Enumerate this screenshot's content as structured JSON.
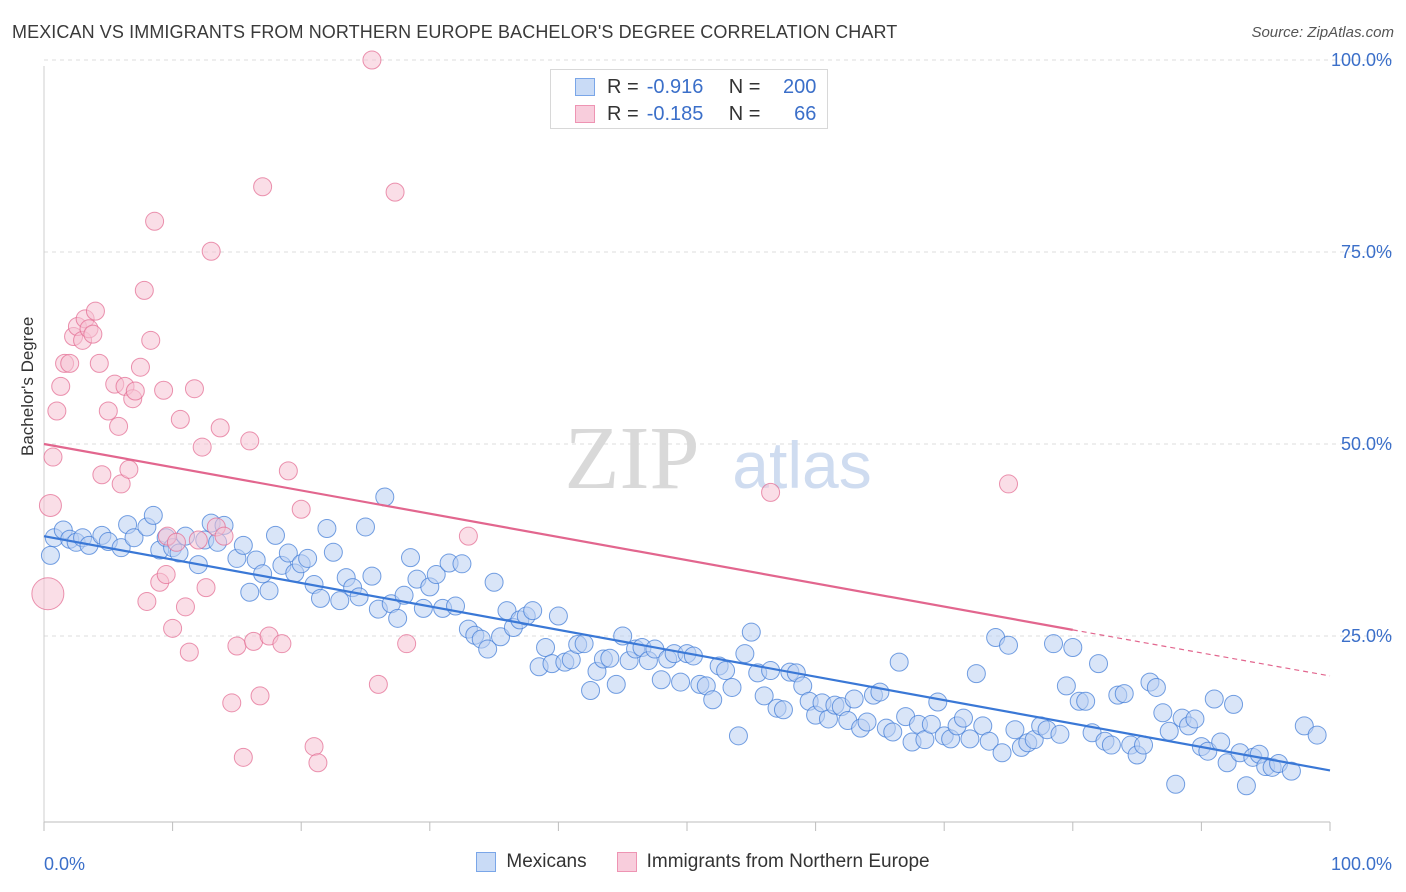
{
  "title": "MEXICAN VS IMMIGRANTS FROM NORTHERN EUROPE BACHELOR'S DEGREE CORRELATION CHART",
  "source": "Source: ZipAtlas.com",
  "watermark": {
    "zip": "ZIP",
    "atlas": "atlas"
  },
  "legend": {
    "rows": [
      {
        "r_label": "R =",
        "r_value": "-0.916",
        "n_label": "N =",
        "n_value": "200",
        "color": "#7aa6e8",
        "fill": "#c9dbf6"
      },
      {
        "r_label": "R =",
        "r_value": "-0.185",
        "n_label": "N =",
        "n_value": "66",
        "color": "#ee94b3",
        "fill": "#f8cddc"
      }
    ]
  },
  "chart_data": {
    "type": "scatter",
    "title": "MEXICAN VS IMMIGRANTS FROM NORTHERN EUROPE BACHELOR'S DEGREE CORRELATION CHART",
    "xlabel": "",
    "ylabel": "Bachelor's Degree",
    "xlim": [
      0,
      100
    ],
    "ylim": [
      0,
      100
    ],
    "x_tick_labels": [
      "0.0%",
      "100.0%"
    ],
    "y_tick_labels": [
      "25.0%",
      "50.0%",
      "75.0%",
      "100.0%"
    ],
    "y_ticks": [
      25,
      50,
      75,
      100
    ],
    "series": [
      {
        "name": "Mexicans",
        "color": "#3a78d6",
        "fill": "#b9d0f2",
        "trend": {
          "x0": 0,
          "y0": 38.0,
          "x1": 100,
          "y1": 7.5
        },
        "points": [
          [
            0.5,
            35.5
          ],
          [
            0.8,
            37.8
          ],
          [
            1.5,
            38.8
          ],
          [
            2,
            37.6
          ],
          [
            2.5,
            37.2
          ],
          [
            3,
            37.8
          ],
          [
            3.5,
            36.8
          ],
          [
            4.5,
            38.1
          ],
          [
            5,
            37.3
          ],
          [
            6,
            36.5
          ],
          [
            6.5,
            39.5
          ],
          [
            7,
            37.8
          ],
          [
            8,
            39.2
          ],
          [
            8.5,
            40.7
          ],
          [
            9,
            36.2
          ],
          [
            9.5,
            37.8
          ],
          [
            10,
            36.5
          ],
          [
            10.5,
            35.8
          ],
          [
            11,
            38.0
          ],
          [
            12,
            34.3
          ],
          [
            12.5,
            37.5
          ],
          [
            13,
            39.7
          ],
          [
            13.5,
            37.2
          ],
          [
            14,
            39.4
          ],
          [
            15,
            35.1
          ],
          [
            15.5,
            36.8
          ],
          [
            16,
            30.7
          ],
          [
            16.5,
            34.9
          ],
          [
            17,
            33.1
          ],
          [
            17.5,
            30.9
          ],
          [
            18,
            38.1
          ],
          [
            18.5,
            34.2
          ],
          [
            19,
            35.8
          ],
          [
            19.5,
            33.2
          ],
          [
            20,
            34.4
          ],
          [
            20.5,
            35.1
          ],
          [
            21,
            31.7
          ],
          [
            21.5,
            29.9
          ],
          [
            22,
            39.0
          ],
          [
            22.5,
            35.9
          ],
          [
            23,
            29.6
          ],
          [
            23.5,
            32.6
          ],
          [
            24,
            31.3
          ],
          [
            24.5,
            30.1
          ],
          [
            25,
            39.2
          ],
          [
            25.5,
            32.8
          ],
          [
            26,
            28.5
          ],
          [
            26.5,
            43.1
          ],
          [
            27,
            29.2
          ],
          [
            27.5,
            27.3
          ],
          [
            28,
            30.3
          ],
          [
            28.5,
            35.2
          ],
          [
            29,
            32.4
          ],
          [
            29.5,
            28.6
          ],
          [
            30,
            31.4
          ],
          [
            30.5,
            33.0
          ],
          [
            31,
            28.6
          ],
          [
            31.5,
            34.5
          ],
          [
            32,
            28.9
          ],
          [
            32.5,
            34.4
          ],
          [
            33,
            25.9
          ],
          [
            33.5,
            25.1
          ],
          [
            34,
            24.6
          ],
          [
            34.5,
            23.3
          ],
          [
            35,
            32.0
          ],
          [
            35.5,
            24.9
          ],
          [
            36,
            28.3
          ],
          [
            36.5,
            26.1
          ],
          [
            37,
            27.1
          ],
          [
            37.5,
            27.6
          ],
          [
            38,
            28.3
          ],
          [
            38.5,
            21.0
          ],
          [
            39,
            23.5
          ],
          [
            39.5,
            21.4
          ],
          [
            40,
            27.6
          ],
          [
            40.5,
            21.6
          ],
          [
            41,
            21.9
          ],
          [
            41.5,
            23.9
          ],
          [
            42,
            24.0
          ],
          [
            42.5,
            17.9
          ],
          [
            43,
            20.4
          ],
          [
            43.5,
            22.0
          ],
          [
            44,
            22.1
          ],
          [
            44.5,
            18.7
          ],
          [
            45,
            25.0
          ],
          [
            45.5,
            21.8
          ],
          [
            46,
            23.3
          ],
          [
            46.5,
            23.5
          ],
          [
            47,
            21.8
          ],
          [
            47.5,
            23.3
          ],
          [
            48,
            19.3
          ],
          [
            48.5,
            22.0
          ],
          [
            49,
            22.7
          ],
          [
            49.5,
            19.0
          ],
          [
            50,
            22.7
          ],
          [
            50.5,
            22.4
          ],
          [
            51,
            18.7
          ],
          [
            51.5,
            18.5
          ],
          [
            52,
            16.7
          ],
          [
            52.5,
            21.1
          ],
          [
            53,
            20.5
          ],
          [
            53.5,
            18.3
          ],
          [
            54,
            12.0
          ],
          [
            54.5,
            22.7
          ],
          [
            55,
            25.5
          ],
          [
            55.5,
            20.2
          ],
          [
            56,
            17.2
          ],
          [
            56.5,
            20.5
          ],
          [
            57,
            15.6
          ],
          [
            57.5,
            15.4
          ],
          [
            58,
            20.3
          ],
          [
            58.5,
            20.2
          ],
          [
            59,
            18.5
          ],
          [
            59.5,
            16.5
          ],
          [
            60,
            14.7
          ],
          [
            60.5,
            16.3
          ],
          [
            61,
            14.2
          ],
          [
            61.5,
            16.0
          ],
          [
            62,
            15.8
          ],
          [
            62.5,
            14.0
          ],
          [
            63,
            16.8
          ],
          [
            63.5,
            13.0
          ],
          [
            64,
            13.8
          ],
          [
            64.5,
            17.3
          ],
          [
            65,
            17.7
          ],
          [
            65.5,
            13.0
          ],
          [
            66,
            12.5
          ],
          [
            66.5,
            21.6
          ],
          [
            67,
            14.5
          ],
          [
            67.5,
            11.2
          ],
          [
            68,
            13.5
          ],
          [
            68.5,
            11.5
          ],
          [
            69,
            13.5
          ],
          [
            69.5,
            16.4
          ],
          [
            70,
            12.0
          ],
          [
            70.5,
            11.6
          ],
          [
            71,
            13.3
          ],
          [
            71.5,
            14.3
          ],
          [
            72,
            11.6
          ],
          [
            72.5,
            20.1
          ],
          [
            73,
            13.3
          ],
          [
            73.5,
            11.3
          ],
          [
            74,
            24.8
          ],
          [
            74.5,
            9.8
          ],
          [
            75,
            23.8
          ],
          [
            75.5,
            12.8
          ],
          [
            76,
            10.5
          ],
          [
            76.5,
            11.1
          ],
          [
            77,
            11.5
          ],
          [
            77.5,
            13.3
          ],
          [
            78,
            12.8
          ],
          [
            78.5,
            24.0
          ],
          [
            79,
            12.2
          ],
          [
            79.5,
            18.5
          ],
          [
            80,
            23.5
          ],
          [
            80.5,
            16.5
          ],
          [
            81,
            16.5
          ],
          [
            81.5,
            12.4
          ],
          [
            82,
            21.4
          ],
          [
            82.5,
            11.3
          ],
          [
            83,
            10.8
          ],
          [
            83.5,
            17.3
          ],
          [
            84,
            17.5
          ],
          [
            84.5,
            10.8
          ],
          [
            85,
            9.5
          ],
          [
            85.5,
            10.8
          ],
          [
            86,
            19.0
          ],
          [
            86.5,
            18.3
          ],
          [
            87,
            15.0
          ],
          [
            87.5,
            12.6
          ],
          [
            88,
            5.7
          ],
          [
            88.5,
            14.3
          ],
          [
            89,
            13.3
          ],
          [
            89.5,
            14.2
          ],
          [
            90,
            10.6
          ],
          [
            90.5,
            10.0
          ],
          [
            91,
            16.8
          ],
          [
            91.5,
            11.2
          ],
          [
            92,
            8.5
          ],
          [
            92.5,
            16.1
          ],
          [
            93,
            9.8
          ],
          [
            93.5,
            5.5
          ],
          [
            94,
            9.2
          ],
          [
            94.5,
            9.6
          ],
          [
            95,
            8.0
          ],
          [
            95.5,
            7.9
          ],
          [
            96,
            8.4
          ],
          [
            97,
            7.4
          ],
          [
            98,
            13.3
          ],
          [
            99,
            12.1
          ]
        ]
      },
      {
        "name": "Immigrants from Northern Europe",
        "color": "#e2668e",
        "fill": "#f6c3d4",
        "trend": {
          "x0": 0,
          "y0": 50.0,
          "x1": 80,
          "y1": 25.8
        },
        "trend_dashed": {
          "x0": 80,
          "y0": 25.8,
          "x1": 100,
          "y1": 19.8
        },
        "points": [
          [
            0.3,
            30.5
          ],
          [
            0.5,
            42.0
          ],
          [
            0.7,
            48.3
          ],
          [
            1,
            54.3
          ],
          [
            1.3,
            57.5
          ],
          [
            1.6,
            60.5
          ],
          [
            2,
            60.5
          ],
          [
            2.3,
            64.0
          ],
          [
            2.6,
            65.3
          ],
          [
            3,
            63.5
          ],
          [
            3.2,
            66.3
          ],
          [
            3.5,
            65.0
          ],
          [
            3.8,
            64.3
          ],
          [
            4,
            67.3
          ],
          [
            4.3,
            60.5
          ],
          [
            4.5,
            46.0
          ],
          [
            5,
            54.3
          ],
          [
            5.5,
            57.8
          ],
          [
            5.8,
            52.3
          ],
          [
            6,
            44.8
          ],
          [
            6.3,
            57.5
          ],
          [
            6.6,
            46.7
          ],
          [
            6.9,
            55.9
          ],
          [
            7.1,
            56.9
          ],
          [
            7.5,
            60.0
          ],
          [
            7.8,
            70.0
          ],
          [
            8,
            29.5
          ],
          [
            8.3,
            63.5
          ],
          [
            8.6,
            79.0
          ],
          [
            9,
            32.0
          ],
          [
            9.3,
            57.0
          ],
          [
            9.6,
            38.0
          ],
          [
            10,
            26.0
          ],
          [
            10.3,
            37.2
          ],
          [
            10.6,
            53.2
          ],
          [
            11,
            28.8
          ],
          [
            11.3,
            22.9
          ],
          [
            11.7,
            57.2
          ],
          [
            12,
            37.5
          ],
          [
            12.3,
            49.6
          ],
          [
            12.6,
            31.3
          ],
          [
            13,
            75.1
          ],
          [
            13.4,
            39.2
          ],
          [
            13.7,
            52.1
          ],
          [
            14,
            38.0
          ],
          [
            14.6,
            16.3
          ],
          [
            15,
            23.7
          ],
          [
            15.5,
            9.2
          ],
          [
            16,
            50.4
          ],
          [
            16.3,
            24.3
          ],
          [
            16.8,
            17.2
          ],
          [
            17,
            83.5
          ],
          [
            17.5,
            25.0
          ],
          [
            18.5,
            24.0
          ],
          [
            19,
            46.5
          ],
          [
            20,
            41.5
          ],
          [
            21,
            10.6
          ],
          [
            21.3,
            8.5
          ],
          [
            25.5,
            100.0
          ],
          [
            26,
            18.7
          ],
          [
            27.3,
            82.8
          ],
          [
            28.2,
            24.0
          ],
          [
            33,
            38.0
          ],
          [
            56.5,
            43.7
          ],
          [
            75,
            44.8
          ],
          [
            9.5,
            33.0
          ]
        ]
      }
    ]
  },
  "bottom_legend": [
    {
      "label": "Mexicans",
      "color": "#7aa6e8",
      "fill": "#c9dbf6"
    },
    {
      "label": "Immigrants from Northern Europe",
      "color": "#ee94b3",
      "fill": "#f8cddc"
    }
  ]
}
